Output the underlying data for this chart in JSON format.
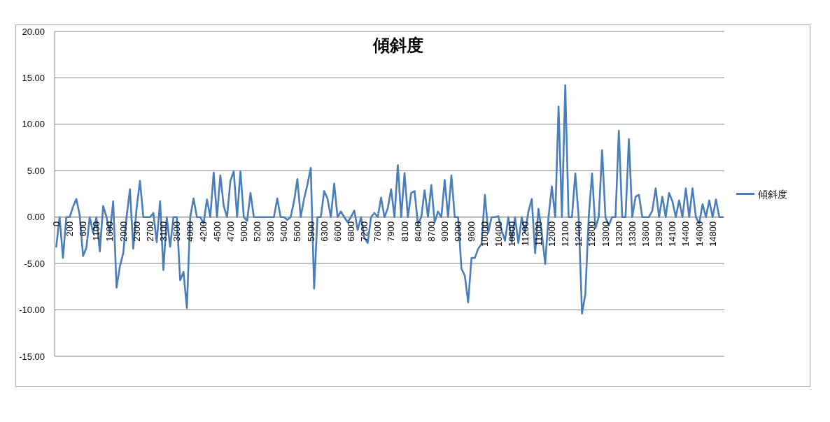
{
  "chart_data": {
    "type": "line",
    "title": "傾斜度",
    "categories": [
      "0",
      null,
      null,
      null,
      "200",
      null,
      null,
      null,
      "600",
      null,
      null,
      null,
      "1100",
      null,
      null,
      null,
      "1600",
      null,
      null,
      null,
      "2000",
      null,
      null,
      null,
      "2300",
      null,
      null,
      null,
      "2700",
      null,
      null,
      null,
      "3100",
      null,
      null,
      null,
      "3500",
      null,
      null,
      null,
      "4000",
      null,
      null,
      null,
      "4200",
      null,
      null,
      null,
      "4500",
      null,
      null,
      null,
      "4700",
      null,
      null,
      null,
      "5000",
      null,
      null,
      null,
      "5200",
      null,
      null,
      null,
      "5300",
      null,
      null,
      null,
      "5400",
      null,
      null,
      null,
      "5600",
      null,
      null,
      null,
      "5900",
      null,
      null,
      null,
      "6300",
      null,
      null,
      null,
      "6600",
      null,
      null,
      null,
      "6800",
      null,
      null,
      null,
      "7200",
      null,
      null,
      null,
      "7600",
      null,
      null,
      null,
      "7900",
      null,
      null,
      null,
      "8100",
      null,
      null,
      null,
      "8400",
      null,
      null,
      null,
      "8700",
      null,
      null,
      null,
      "9000",
      null,
      null,
      null,
      "9200",
      null,
      null,
      null,
      "9600",
      null,
      null,
      null,
      "10000",
      null,
      null,
      null,
      "10400",
      null,
      null,
      null,
      "10800",
      null,
      null,
      null,
      "11200",
      null,
      null,
      null,
      "11600",
      null,
      null,
      null,
      "12000",
      null,
      null,
      null,
      "12100",
      null,
      null,
      null,
      "12400",
      null,
      null,
      null,
      "12800",
      null,
      null,
      null,
      "13000",
      null,
      null,
      null,
      "13200",
      null,
      null,
      null,
      "13300",
      null,
      null,
      null,
      "13600",
      null,
      null,
      null,
      "13900",
      null,
      null,
      null,
      "14100",
      null,
      null,
      null,
      "14400",
      null,
      null,
      null,
      "14600",
      null,
      null,
      null,
      "14800",
      null,
      null,
      null
    ],
    "series": [
      {
        "name": "傾斜度",
        "color": "#4a7ebb",
        "values": [
          -3.2,
          0,
          -4.4,
          0,
          0,
          1.1,
          1.95,
          0.2,
          -4.2,
          -3.3,
          0,
          -1.7,
          0,
          -3.7,
          1.2,
          0,
          -1.7,
          1.7,
          -7.6,
          -5.3,
          -3.9,
          0,
          3.0,
          -3.4,
          1.0,
          3.9,
          0,
          0,
          0,
          0.45,
          -2.7,
          1.7,
          -5.7,
          0,
          -3.2,
          0,
          0,
          -6.8,
          -5.9,
          -9.8,
          0,
          2.0,
          0,
          0,
          -0.7,
          1.9,
          0,
          4.8,
          0,
          4.5,
          1.2,
          0,
          3.9,
          4.95,
          0,
          4.95,
          0,
          -0.4,
          2.6,
          0,
          0,
          0,
          0,
          0,
          0,
          0,
          2.0,
          0,
          0,
          -0.3,
          0,
          1.7,
          4.1,
          0,
          1.95,
          3.5,
          5.3,
          -7.7,
          0,
          0,
          2.8,
          2.0,
          0,
          3.6,
          0,
          0.6,
          0,
          -0.55,
          0,
          0.7,
          -1.4,
          0,
          -2.2,
          -2.8,
          0,
          0.45,
          0,
          2.1,
          0,
          0.95,
          3.0,
          0,
          5.6,
          0,
          4.75,
          0,
          2.6,
          2.8,
          -0.8,
          0,
          2.9,
          0,
          3.45,
          -0.55,
          0.6,
          0,
          4.0,
          0,
          4.5,
          0,
          0,
          -5.55,
          -6.3,
          -9.2,
          -4.4,
          -4.4,
          -3.4,
          -2.9,
          2.4,
          -1.7,
          0,
          0,
          0.1,
          -1.4,
          -2.55,
          0,
          -2.7,
          0,
          -2.8,
          0,
          -1.7,
          0.6,
          1.95,
          -3.9,
          0.9,
          -1.7,
          -5.05,
          0,
          3.3,
          0,
          11.9,
          0,
          14.2,
          0,
          0,
          4.7,
          0,
          -10.4,
          -8.3,
          0,
          4.7,
          -1.2,
          0,
          7.2,
          0,
          -0.9,
          0,
          0,
          9.3,
          0,
          0,
          8.4,
          0,
          2.2,
          2.4,
          0,
          0,
          0,
          0.7,
          3.1,
          0,
          2.2,
          0,
          2.6,
          1.7,
          0,
          1.8,
          0,
          3.1,
          0,
          3.1,
          0,
          -0.7,
          1.4,
          0,
          1.8,
          0,
          1.9,
          0,
          0
        ]
      }
    ],
    "ylim": [
      -15,
      20
    ],
    "yticks": [
      {
        "value": -15,
        "label": "-15.00"
      },
      {
        "value": -10,
        "label": "-10.00"
      },
      {
        "value": -5,
        "label": "-5.00"
      },
      {
        "value": 0,
        "label": "0.00"
      },
      {
        "value": 5,
        "label": "5.00"
      },
      {
        "value": 10,
        "label": "10.00"
      },
      {
        "value": 15,
        "label": "15.00"
      },
      {
        "value": 20,
        "label": "20.00"
      }
    ],
    "grid": "y",
    "legend": "right"
  }
}
